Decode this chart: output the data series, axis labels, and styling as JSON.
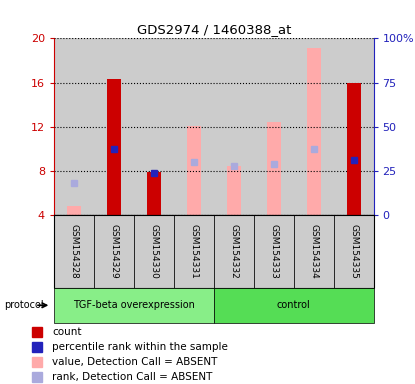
{
  "title": "GDS2974 / 1460388_at",
  "samples": [
    "GSM154328",
    "GSM154329",
    "GSM154330",
    "GSM154331",
    "GSM154332",
    "GSM154333",
    "GSM154334",
    "GSM154335"
  ],
  "ylim_left": [
    4,
    20
  ],
  "ylim_right": [
    0,
    100
  ],
  "yticks_left": [
    4,
    8,
    12,
    16,
    20
  ],
  "yticks_right": [
    0,
    25,
    50,
    75,
    100
  ],
  "ytick_labels_right": [
    "0",
    "25",
    "50",
    "75",
    "100%"
  ],
  "red_bars": [
    null,
    16.3,
    7.9,
    null,
    null,
    null,
    null,
    16.0
  ],
  "pink_bars": [
    4.8,
    null,
    null,
    12.1,
    8.4,
    12.4,
    19.1,
    null
  ],
  "blue_squares": [
    null,
    10.0,
    7.8,
    null,
    null,
    null,
    null,
    9.0
  ],
  "light_blue_squares": [
    6.9,
    null,
    null,
    8.8,
    8.4,
    8.6,
    10.0,
    null
  ],
  "bar_bottom": 4,
  "bar_width": 0.35,
  "groups": [
    {
      "label": "TGF-beta overexpression",
      "start": 0,
      "end": 4
    },
    {
      "label": "control",
      "start": 4,
      "end": 8
    }
  ],
  "colors": {
    "red_bar": "#cc0000",
    "pink_bar": "#ffaaaa",
    "blue_square": "#2222bb",
    "light_blue_square": "#aaaadd",
    "bg_samples": "#cccccc",
    "bg_group1": "#88ee88",
    "bg_group2": "#55dd55",
    "left_axis": "#cc0000",
    "right_axis": "#2222bb"
  },
  "legend_items": [
    {
      "color": "#cc0000",
      "label": "count"
    },
    {
      "color": "#2222bb",
      "label": "percentile rank within the sample"
    },
    {
      "color": "#ffaaaa",
      "label": "value, Detection Call = ABSENT"
    },
    {
      "color": "#aaaadd",
      "label": "rank, Detection Call = ABSENT"
    }
  ]
}
